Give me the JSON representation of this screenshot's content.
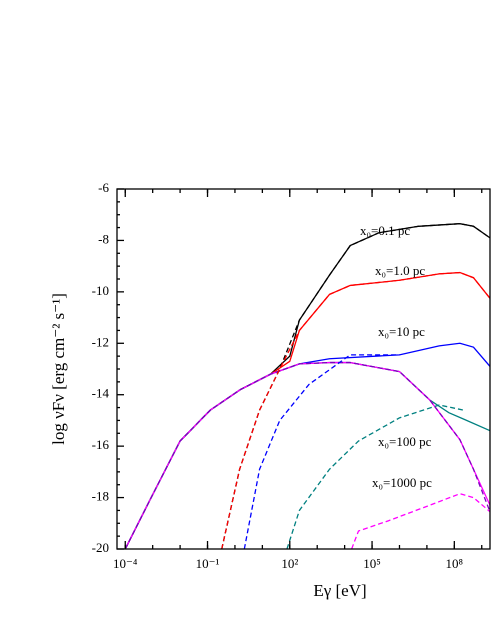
{
  "chart_data": {
    "type": "line",
    "x_label": "Eγ [eV]",
    "y_label": "log νFν [erg cm⁻² s⁻¹]",
    "xscale": "log",
    "xlim": [
      5e-05,
      2000000000.0
    ],
    "ylim": [
      -20,
      -6
    ],
    "xticks": [
      {
        "value": 0.0001,
        "label": "10⁻⁴"
      },
      {
        "value": 0.1,
        "label": "10⁻¹"
      },
      {
        "value": 100,
        "label": "10²"
      },
      {
        "value": 100000.0,
        "label": "10⁵"
      },
      {
        "value": 100000000.0,
        "label": "10⁸"
      }
    ],
    "yticks": [
      -20,
      -18,
      -16,
      -14,
      -12,
      -10,
      -8,
      -6
    ],
    "annotations": [
      "x₀=0.1 pc",
      "x₀=1.0 pc",
      "x₀=10 pc",
      "x₀=100 pc",
      "x₀=1000 pc"
    ],
    "series": [
      {
        "color": "#000000",
        "dashed": false,
        "x": [
          0.0001,
          0.00079,
          0.01,
          0.126,
          1.58,
          20,
          100,
          224,
          2800,
          16000,
          180000,
          5000000.0,
          160000000.0,
          500000000.0,
          2000000000.0
        ],
        "values": [
          -20,
          -18.1,
          -15.8,
          -14.6,
          -13.8,
          -13.2,
          -12.5,
          -11.1,
          -9.35,
          -8.2,
          -7.7,
          -7.45,
          -7.35,
          -7.45,
          -7.9
        ]
      },
      {
        "color": "#ff0000",
        "dashed": false,
        "x": [
          0.0001,
          0.00079,
          0.01,
          0.126,
          1.58,
          20,
          100,
          224,
          2800,
          16000,
          1000000.0,
          28000000.0,
          160000000.0,
          500000000.0,
          2000000000.0
        ],
        "values": [
          -20,
          -18.1,
          -15.8,
          -14.6,
          -13.8,
          -13.2,
          -12.7,
          -11.5,
          -10.1,
          -9.75,
          -9.55,
          -9.3,
          -9.25,
          -9.45,
          -10.25
        ]
      },
      {
        "color": "#0000ff",
        "dashed": false,
        "x": [
          0.0001,
          0.00079,
          0.01,
          0.126,
          1.58,
          20,
          224,
          2800,
          1000000.0,
          28000000.0,
          160000000.0,
          500000000.0,
          2000000000.0
        ],
        "values": [
          -20,
          -18.1,
          -15.8,
          -14.6,
          -13.8,
          -13.2,
          -12.8,
          -12.6,
          -12.45,
          -12.1,
          -12.0,
          -12.15,
          -12.9
        ]
      },
      {
        "color": "#008080",
        "dashed": false,
        "x": [
          0.0001,
          0.00079,
          0.01,
          0.126,
          1.58,
          20,
          224,
          2800,
          16000,
          1000000.0,
          12600000.0,
          63000000.0,
          220000000.0,
          2000000000.0
        ],
        "values": [
          -20,
          -18.1,
          -15.8,
          -14.6,
          -13.8,
          -13.2,
          -12.8,
          -12.75,
          -12.75,
          -13.1,
          -14.2,
          -14.7,
          -14.95,
          -15.4
        ]
      },
      {
        "color": "#ff00ff",
        "dashed": false,
        "x": [
          0.0001,
          0.00079,
          0.01,
          0.126,
          1.58,
          20,
          224,
          2800,
          16000,
          1000000.0,
          12600000.0,
          160000000.0,
          500000000.0,
          1000000000.0,
          2000000000.0
        ],
        "values": [
          -20,
          -18.1,
          -15.8,
          -14.6,
          -13.8,
          -13.2,
          -12.8,
          -12.75,
          -12.75,
          -13.1,
          -14.2,
          -15.75,
          -16.9,
          -17.6,
          -18.3
        ]
      },
      {
        "color": "#8000c0",
        "dashed": true,
        "x": [
          0.0001,
          0.00079,
          0.01,
          0.126,
          1.58,
          20,
          224,
          2800,
          16000,
          1000000.0,
          12600000.0,
          160000000.0,
          500000000.0,
          2000000000.0
        ],
        "values": [
          -20,
          -18.1,
          -15.8,
          -14.6,
          -13.8,
          -13.2,
          -12.8,
          -12.75,
          -12.75,
          -13.1,
          -14.2,
          -15.75,
          -16.9,
          -18.55
        ]
      },
      {
        "color": "#000000",
        "dashed": true,
        "x": [
          0.33,
          1.48,
          7.9,
          43,
          224,
          2800,
          16000,
          180000,
          5000000.0,
          160000000.0,
          500000000.0,
          2000000000.0
        ],
        "values": [
          -20,
          -16.9,
          -14.6,
          -13.0,
          -11.1,
          -9.35,
          -8.2,
          -7.7,
          -7.45,
          -7.35,
          -7.45,
          -7.9
        ]
      },
      {
        "color": "#ff0000",
        "dashed": true,
        "x": [
          0.33,
          1.48,
          7.9,
          43,
          224,
          2800,
          16000,
          1000000.0,
          28000000.0,
          160000000.0,
          500000000.0,
          2000000000.0
        ],
        "values": [
          -20,
          -16.9,
          -14.6,
          -13.0,
          -11.5,
          -10.1,
          -9.75,
          -9.55,
          -9.3,
          -9.25,
          -9.45,
          -10.25
        ]
      },
      {
        "color": "#0000ff",
        "dashed": true,
        "x": [
          2.2,
          7.9,
          43,
          500,
          16000,
          1000000.0
        ],
        "values": [
          -20,
          -16.9,
          -15.0,
          -13.6,
          -12.45,
          -12.45
        ]
      },
      {
        "color": "#008080",
        "dashed": true,
        "x": [
          79,
          224,
          2800,
          32000,
          1000000.0,
          28000000.0,
          220000000.0
        ],
        "values": [
          -20,
          -18.5,
          -16.9,
          -15.8,
          -14.9,
          -14.4,
          -14.6
        ]
      },
      {
        "color": "#ff00ff",
        "dashed": true,
        "x": [
          18000,
          32000,
          400000,
          12600000.0,
          160000000.0,
          500000000.0,
          2000000000.0
        ],
        "values": [
          -20,
          -19.3,
          -18.9,
          -18.3,
          -17.85,
          -18.0,
          -18.55
        ]
      }
    ]
  }
}
